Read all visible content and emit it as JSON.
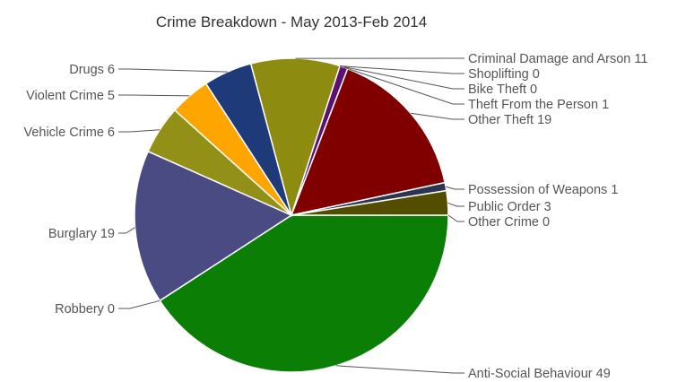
{
  "chart_data": {
    "type": "pie",
    "title": "Crime Breakdown - May 2013-Feb 2014",
    "slices": [
      {
        "label": "Anti-Social Behaviour",
        "value": 49,
        "color": "#0b7f05",
        "display": "Anti-Social Behaviour 49"
      },
      {
        "label": "Robbery",
        "value": 0,
        "color": "#0b7f05",
        "display": "Robbery 0"
      },
      {
        "label": "Burglary",
        "value": 19,
        "color": "#4b4b84",
        "display": "Burglary 19"
      },
      {
        "label": "Vehicle Crime",
        "value": 6,
        "color": "#939018",
        "display": "Vehicle Crime 6"
      },
      {
        "label": "Violent Crime",
        "value": 5,
        "color": "#ffa500",
        "display": "Violent Crime 5"
      },
      {
        "label": "Drugs",
        "value": 6,
        "color": "#1e3a78",
        "display": "Drugs 6"
      },
      {
        "label": "Criminal Damage and Arson",
        "value": 11,
        "color": "#8d8b10",
        "display": "Criminal Damage and Arson 11"
      },
      {
        "label": "Shoplifting",
        "value": 0,
        "color": "#8d8b10",
        "display": "Shoplifting 0"
      },
      {
        "label": "Bike Theft",
        "value": 0,
        "color": "#8d8b10",
        "display": "Bike Theft 0"
      },
      {
        "label": "Theft From the Person",
        "value": 1,
        "color": "#5d0f74",
        "display": "Theft From the Person 1"
      },
      {
        "label": "Other Theft",
        "value": 19,
        "color": "#800000",
        "display": "Other Theft 19"
      },
      {
        "label": "Possession of Weapons",
        "value": 1,
        "color": "#2b3550",
        "display": "Possession of Weapons 1"
      },
      {
        "label": "Public Order",
        "value": 3,
        "color": "#534d00",
        "display": "Public Order 3"
      },
      {
        "label": "Other Crime",
        "value": 0,
        "color": "#534d00",
        "display": "Other Crime 0"
      }
    ]
  }
}
